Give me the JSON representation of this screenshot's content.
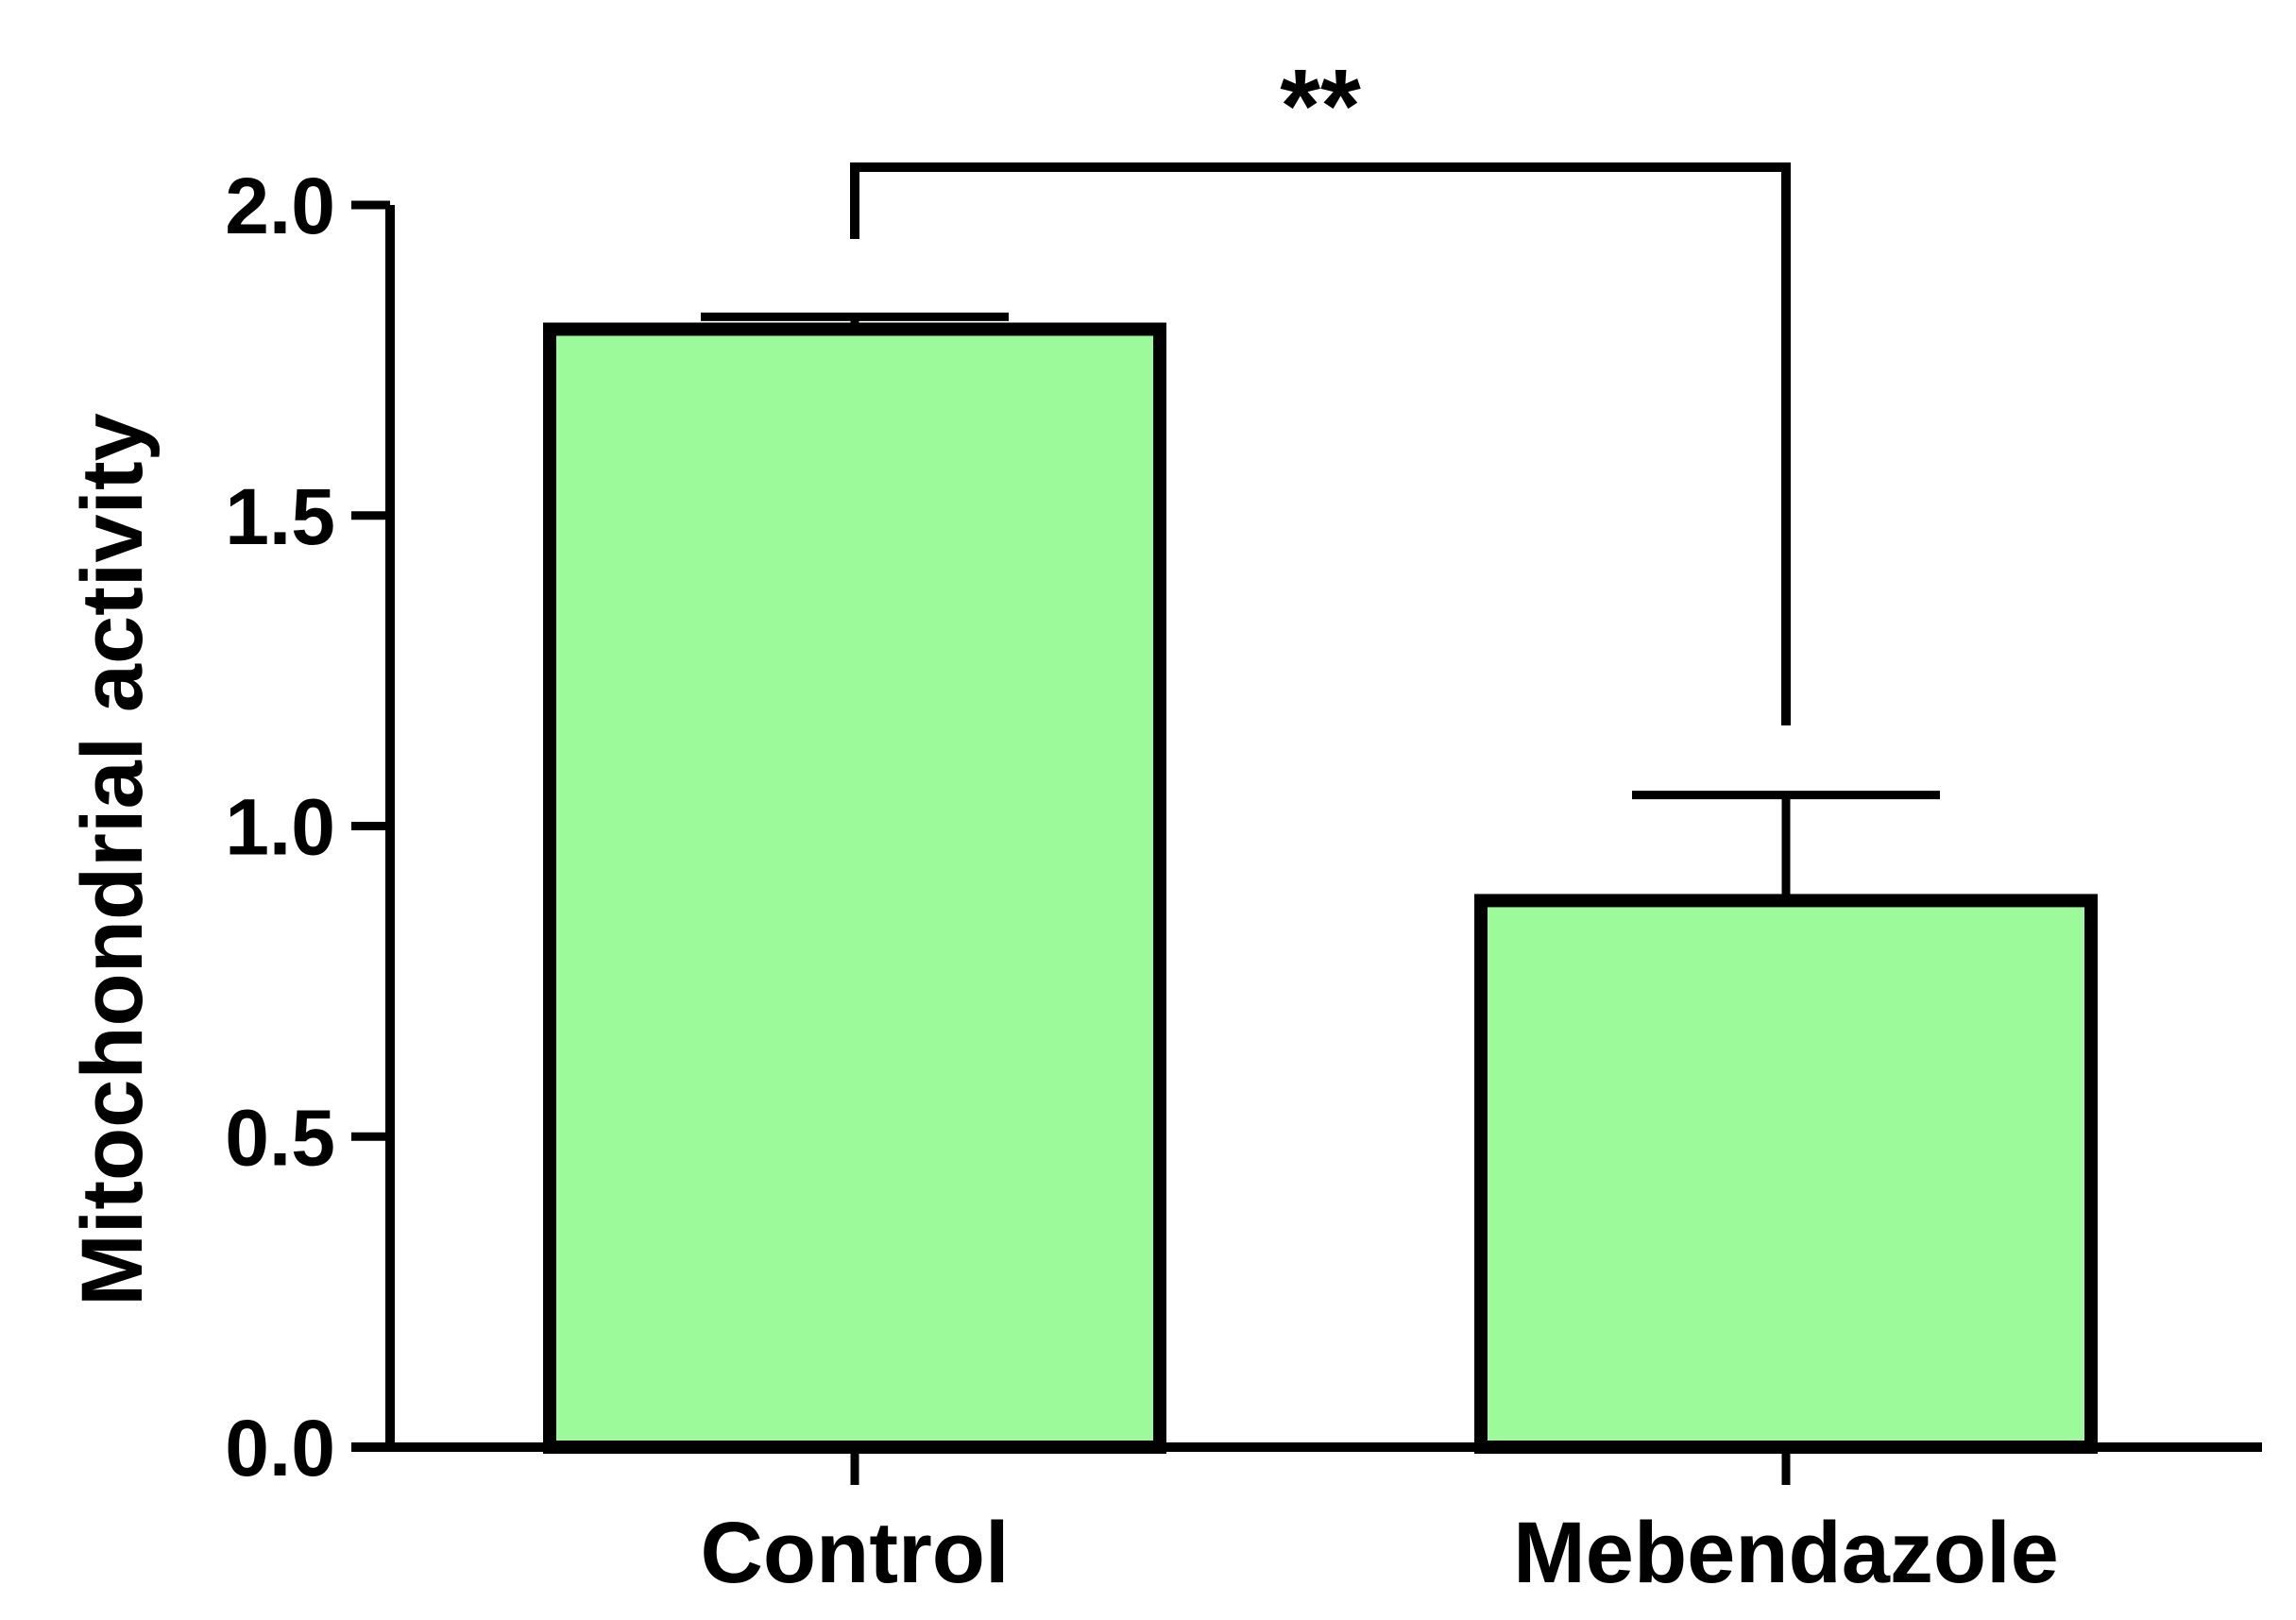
{
  "chart_data": {
    "type": "bar",
    "title": "",
    "xlabel": "",
    "ylabel": "Mitochondrial activity",
    "categories": [
      "Control",
      "Mebendazole"
    ],
    "values": [
      1.8,
      0.88
    ],
    "error_upper": [
      0.02,
      0.17
    ],
    "ylim": [
      0,
      2.0
    ],
    "yticks": [
      "0.0",
      "0.5",
      "1.0",
      "1.5",
      "2.0"
    ],
    "grid": false,
    "legend": "none",
    "bar_fill_color": "#9dfa9a",
    "bar_edge_color": "#000000",
    "significance": {
      "label": "**",
      "between": [
        "Control",
        "Mebendazole"
      ]
    }
  }
}
